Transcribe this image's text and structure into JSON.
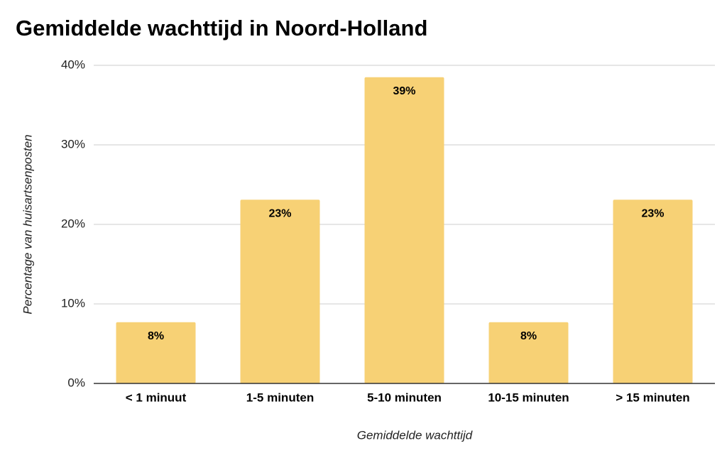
{
  "chart_data": {
    "type": "bar",
    "title": "Gemiddelde wachttijd in Noord-Holland",
    "x_label": "Gemiddelde wachttijd",
    "y_label": "Percentage van huisartsenposten",
    "categories": [
      "< 1 minuut",
      "1-5 minuten",
      "5-10 minuten",
      "10-15 minuten",
      "> 15 minuten"
    ],
    "values": [
      7.7,
      23.1,
      38.5,
      7.7,
      23.1
    ],
    "value_labels": [
      "8%",
      "23%",
      "39%",
      "8%",
      "23%"
    ],
    "color": "#f7d175",
    "ylim": [
      0,
      40
    ],
    "yticks": [
      {
        "value": 0,
        "label": "0%"
      },
      {
        "value": 10,
        "label": "10%"
      },
      {
        "value": 20,
        "label": "20%"
      },
      {
        "value": 30,
        "label": "30%"
      },
      {
        "value": 40,
        "label": "40%"
      }
    ],
    "grid": true
  }
}
